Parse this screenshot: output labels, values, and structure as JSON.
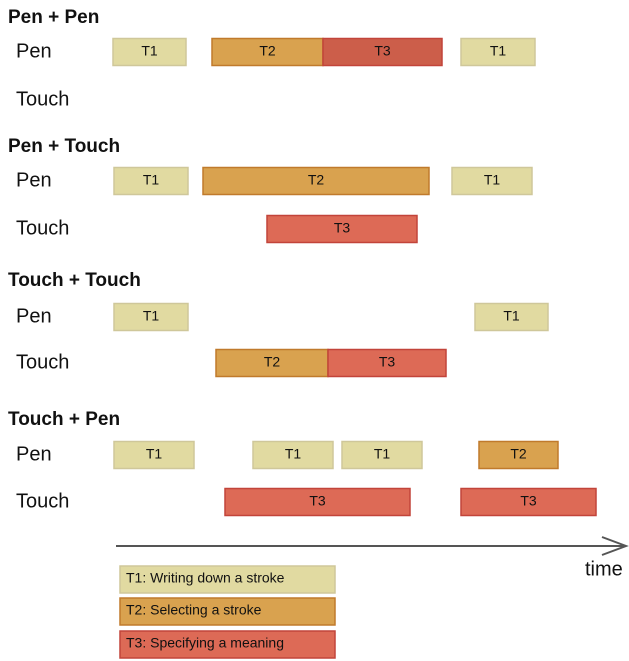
{
  "sections": [
    {
      "title": "Pen + Pen",
      "rows": [
        {
          "label": "Pen",
          "blocks": [
            "T1",
            "T2",
            "T3",
            "T1"
          ]
        },
        {
          "label": "Touch",
          "blocks": []
        }
      ]
    },
    {
      "title": "Pen + Touch",
      "rows": [
        {
          "label": "Pen",
          "blocks": [
            "T1",
            "T2",
            "T1"
          ]
        },
        {
          "label": "Touch",
          "blocks": [
            "T3"
          ]
        }
      ]
    },
    {
      "title": "Touch + Touch",
      "rows": [
        {
          "label": "Pen",
          "blocks": [
            "T1",
            "T1"
          ]
        },
        {
          "label": "Touch",
          "blocks": [
            "T2",
            "T3"
          ]
        }
      ]
    },
    {
      "title": "Touch + Pen",
      "rows": [
        {
          "label": "Pen",
          "blocks": [
            "T1",
            "T1",
            "T1",
            "T2"
          ]
        },
        {
          "label": "Touch",
          "blocks": [
            "T3",
            "T3"
          ]
        }
      ]
    }
  ],
  "axis_label": "time",
  "legend": [
    "T1: Writing down a stroke",
    "T2: Selecting a stroke",
    "T3: Specifying a meaning"
  ]
}
